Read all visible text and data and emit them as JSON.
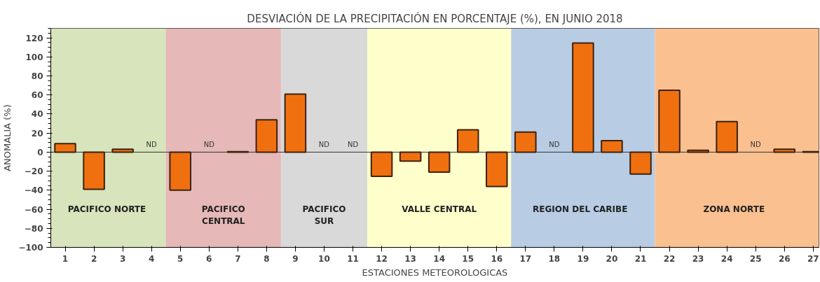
{
  "chart_data": {
    "type": "bar",
    "title": "DESVIACIÓN DE LA PRECIPITACIÓN EN PORCENTAJE (%), EN JUNIO 2018",
    "xlabel": "ESTACIONES METEOROLOGICAS",
    "ylabel": "ANOMALIA (%)",
    "x": [
      1,
      2,
      3,
      4,
      5,
      6,
      7,
      8,
      9,
      10,
      11,
      12,
      13,
      14,
      15,
      16,
      17,
      18,
      19,
      20,
      21,
      22,
      23,
      24,
      25,
      26,
      27
    ],
    "xlim": [
      0.5,
      27.2
    ],
    "xticks": [
      1,
      2,
      3,
      4,
      5,
      6,
      7,
      8,
      9,
      10,
      11,
      12,
      13,
      14,
      15,
      16,
      17,
      18,
      19,
      20,
      21,
      22,
      23,
      24,
      25,
      26,
      27
    ],
    "ylim": [
      -100,
      130
    ],
    "yticks": [
      -100,
      -80,
      -60,
      -40,
      -20,
      0,
      20,
      40,
      60,
      80,
      100,
      120
    ],
    "series": [
      {
        "color": "#f07010",
        "values": [
          9,
          -39,
          3,
          null,
          -40,
          null,
          0.5,
          34,
          61,
          null,
          null,
          -25.5,
          -9.5,
          -21,
          23.5,
          -36,
          21,
          null,
          114.5,
          12,
          -23,
          65,
          2,
          32,
          null,
          3,
          0.5
        ]
      }
    ],
    "bands": [
      {
        "axis": "x",
        "from": 0.5,
        "to": 4.5,
        "label": "PACIFICO  NORTE",
        "color": "#d8e4bc"
      },
      {
        "axis": "x",
        "from": 4.5,
        "to": 8.5,
        "label": "PACIFICO\nCENTRAL",
        "color": "#e6b8b7"
      },
      {
        "axis": "x",
        "from": 8.5,
        "to": 11.5,
        "label": "PACIFICO\nSUR",
        "color": "#d9d9d9"
      },
      {
        "axis": "x",
        "from": 11.5,
        "to": 16.5,
        "label": "VALLE CENTRAL",
        "color": "#ffffcc"
      },
      {
        "axis": "x",
        "from": 16.5,
        "to": 21.5,
        "label": "REGION  DEL  CARIBE",
        "color": "#b8cce4"
      },
      {
        "axis": "x",
        "from": 21.5,
        "to": 27.2,
        "label": "ZONA   NORTE",
        "color": "#fac090"
      }
    ],
    "annotations": [
      "ND",
      "ND",
      "ND",
      "ND",
      "ND",
      "ND"
    ],
    "ref_lines": [
      {
        "axis": "y",
        "value": 0,
        "color": "#333333"
      }
    ],
    "grid": false
  }
}
